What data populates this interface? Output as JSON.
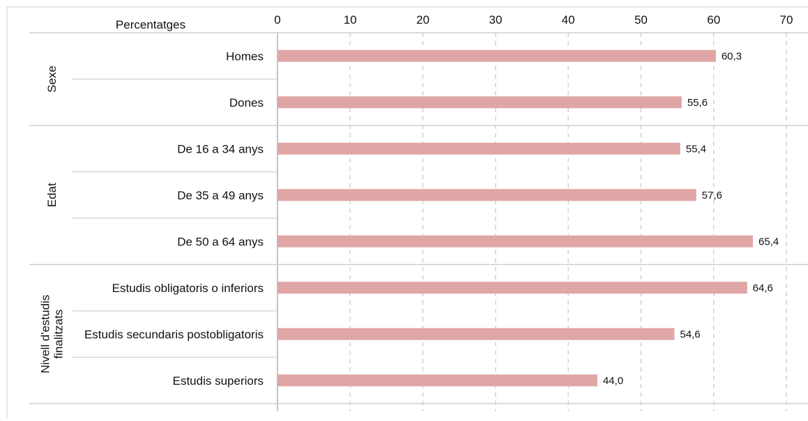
{
  "chart_data": {
    "type": "bar",
    "orientation": "horizontal",
    "unit_label": "Percentatges",
    "xlim": [
      0,
      70
    ],
    "x_ticks": [
      0,
      10,
      20,
      30,
      40,
      50,
      60,
      70
    ],
    "grid": "vertical dashed",
    "bar_color": "#e0a6a6",
    "groups": [
      {
        "name": "Sexe",
        "label_lines": [
          "Sexe"
        ],
        "categories": [
          "Homes",
          "Dones"
        ],
        "values": [
          60.3,
          55.6
        ],
        "value_labels": [
          "60,3",
          "55,6"
        ]
      },
      {
        "name": "Edat",
        "label_lines": [
          "Edat"
        ],
        "categories": [
          "De 16 a 34 anys",
          "De 35 a 49 anys",
          "De 50 a 64 anys"
        ],
        "values": [
          55.4,
          57.6,
          65.4
        ],
        "value_labels": [
          "55,4",
          "57,6",
          "65,4"
        ]
      },
      {
        "name": "Nivell d'estudis finalitzats",
        "label_lines": [
          "Nivell d'estudis",
          "finalitzats"
        ],
        "categories": [
          "Estudis obligatoris o inferiors",
          "Estudis secundaris postobligatoris",
          "Estudis superiors"
        ],
        "values": [
          64.6,
          54.6,
          44.0
        ],
        "value_labels": [
          "64,6",
          "54,6",
          "44,0"
        ]
      }
    ]
  }
}
